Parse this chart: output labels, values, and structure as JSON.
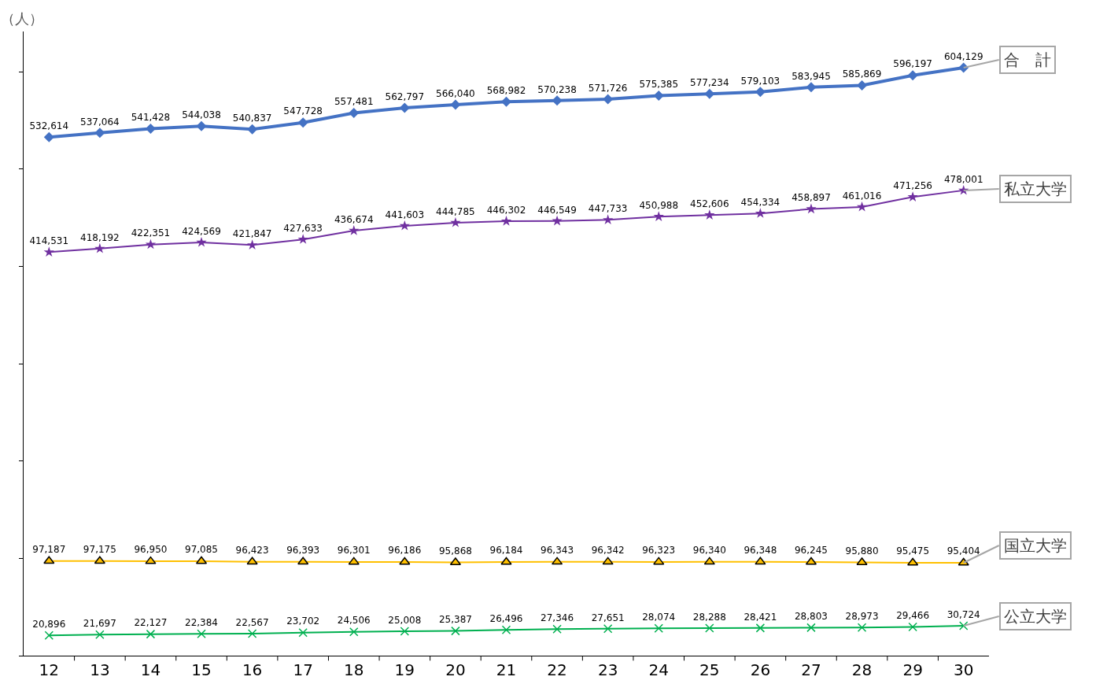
{
  "chart_data": {
    "type": "line",
    "ylabel": "（人）",
    "categories": [
      "12",
      "13",
      "14",
      "15",
      "16",
      "17",
      "18",
      "19",
      "20",
      "21",
      "22",
      "23",
      "24",
      "25",
      "26",
      "27",
      "28",
      "29",
      "30"
    ],
    "series": [
      {
        "name": "合　計",
        "color": "#4472c4",
        "marker": "diamond",
        "values": [
          532614,
          537064,
          541428,
          544038,
          540837,
          547728,
          557481,
          562797,
          566040,
          568982,
          570238,
          571726,
          575385,
          577234,
          579103,
          583945,
          585869,
          596197,
          604129
        ],
        "value_labels": [
          "532,614",
          "537,064",
          "541,428",
          "544,038",
          "540,837",
          "547,728",
          "557,481",
          "562,797",
          "566,040",
          "568,982",
          "570,238",
          "571,726",
          "575,385",
          "577,234",
          "579,103",
          "583,945",
          "585,869",
          "596,197",
          "604,129"
        ]
      },
      {
        "name": "私立大学",
        "color": "#7030a0",
        "marker": "star",
        "values": [
          414531,
          418192,
          422351,
          424569,
          421847,
          427633,
          436674,
          441603,
          444785,
          446302,
          446549,
          447733,
          450988,
          452606,
          454334,
          458897,
          461016,
          471256,
          478001
        ],
        "value_labels": [
          "414,531",
          "418,192",
          "422,351",
          "424,569",
          "421,847",
          "427,633",
          "436,674",
          "441,603",
          "444,785",
          "446,302",
          "446,549",
          "447,733",
          "450,988",
          "452,606",
          "454,334",
          "458,897",
          "461,016",
          "471,256",
          "478,001"
        ]
      },
      {
        "name": "国立大学",
        "color": "#ffc000",
        "marker": "triangle",
        "values": [
          97187,
          97175,
          96950,
          97085,
          96423,
          96393,
          96301,
          96186,
          95868,
          96184,
          96343,
          96342,
          96323,
          96340,
          96348,
          96245,
          95880,
          95475,
          95404
        ],
        "value_labels": [
          "97,187",
          "97,175",
          "96,950",
          "97,085",
          "96,423",
          "96,393",
          "96,301",
          "96,186",
          "95,868",
          "96,184",
          "96,343",
          "96,342",
          "96,323",
          "96,340",
          "96,348",
          "96,245",
          "95,880",
          "95,475",
          "95,404"
        ]
      },
      {
        "name": "公立大学",
        "color": "#00b050",
        "marker": "cross",
        "values": [
          20896,
          21697,
          22127,
          22384,
          22567,
          23702,
          24506,
          25008,
          25387,
          26496,
          27346,
          27651,
          28074,
          28288,
          28421,
          28803,
          28973,
          29466,
          30724
        ],
        "value_labels": [
          "20,896",
          "21,697",
          "22,127",
          "22,384",
          "22,567",
          "23,702",
          "24,506",
          "25,008",
          "25,387",
          "26,496",
          "27,346",
          "27,651",
          "28,074",
          "28,288",
          "28,421",
          "28,803",
          "28,973",
          "29,466",
          "30,724"
        ]
      }
    ],
    "tick_labels": "x",
    "legend": false
  }
}
